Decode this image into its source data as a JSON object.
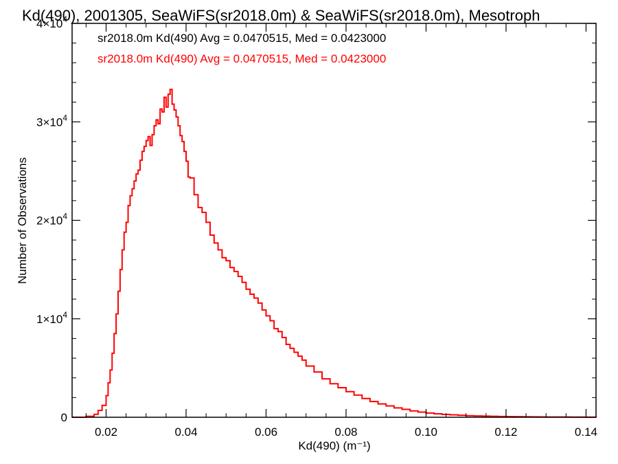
{
  "chart_data": {
    "type": "line",
    "title": "Kd(490), 2001305, SeaWiFS(sr2018.0m) & SeaWiFS(sr2018.0m), Mesotroph",
    "xlabel": "Kd(490) (m⁻¹)",
    "ylabel": "Number of Observations",
    "xlim": [
      0.0115,
      0.1425
    ],
    "ylim": [
      0,
      40000
    ],
    "xticks": [
      0.02,
      0.04,
      0.06,
      0.08,
      0.1,
      0.12,
      0.14
    ],
    "xtick_labels": [
      "0.02",
      "0.04",
      "0.06",
      "0.08",
      "0.10",
      "0.12",
      "0.14"
    ],
    "yticks": [
      {
        "value": 0,
        "mantissa": "0",
        "exponent": ""
      },
      {
        "value": 10000,
        "mantissa": "1×10",
        "exponent": "4"
      },
      {
        "value": 20000,
        "mantissa": "2×10",
        "exponent": "4"
      },
      {
        "value": 30000,
        "mantissa": "3×10",
        "exponent": "4"
      },
      {
        "value": 40000,
        "mantissa": "4×10",
        "exponent": "4"
      }
    ],
    "legend_lines": [
      {
        "text": "sr2018.0m Kd(490) Avg = 0.0470515, Med = 0.0423000",
        "color": "#000000"
      },
      {
        "text": "sr2018.0m Kd(490) Avg = 0.0470515, Med = 0.0423000",
        "color": "#ff0000"
      }
    ],
    "series": [
      {
        "style": "step",
        "color": "#ff0000",
        "x": [
          0.0115,
          0.015,
          0.017,
          0.018,
          0.019,
          0.02,
          0.0205,
          0.021,
          0.0215,
          0.022,
          0.0225,
          0.023,
          0.0235,
          0.024,
          0.0245,
          0.025,
          0.0255,
          0.026,
          0.0265,
          0.027,
          0.0275,
          0.028,
          0.0285,
          0.029,
          0.0295,
          0.03,
          0.0305,
          0.031,
          0.0315,
          0.032,
          0.0325,
          0.033,
          0.0335,
          0.034,
          0.0345,
          0.035,
          0.0355,
          0.036,
          0.0365,
          0.037,
          0.0375,
          0.038,
          0.0385,
          0.039,
          0.0395,
          0.04,
          0.0405,
          0.041,
          0.042,
          0.043,
          0.044,
          0.045,
          0.046,
          0.047,
          0.048,
          0.049,
          0.05,
          0.051,
          0.052,
          0.053,
          0.054,
          0.055,
          0.056,
          0.057,
          0.058,
          0.059,
          0.06,
          0.061,
          0.062,
          0.063,
          0.064,
          0.065,
          0.066,
          0.067,
          0.068,
          0.069,
          0.07,
          0.072,
          0.074,
          0.076,
          0.078,
          0.08,
          0.082,
          0.084,
          0.086,
          0.088,
          0.09,
          0.092,
          0.094,
          0.096,
          0.098,
          0.1,
          0.102,
          0.104,
          0.106,
          0.108,
          0.11,
          0.112,
          0.114,
          0.116,
          0.118,
          0.12,
          0.122,
          0.124,
          0.126,
          0.128,
          0.13,
          0.132,
          0.134,
          0.136,
          0.138,
          0.14,
          0.1425
        ],
        "values": [
          0,
          100,
          300,
          700,
          1200,
          2200,
          3500,
          4800,
          6500,
          8500,
          10500,
          12800,
          15000,
          17000,
          18800,
          19800,
          21500,
          22500,
          23200,
          24000,
          24700,
          25100,
          26100,
          27000,
          27500,
          28100,
          28500,
          27600,
          28700,
          29600,
          30200,
          29800,
          31300,
          31000,
          32500,
          31500,
          32800,
          33300,
          31800,
          31200,
          30500,
          29600,
          28600,
          28000,
          27000,
          26000,
          24400,
          24300,
          22600,
          21300,
          20800,
          19800,
          18500,
          17700,
          17000,
          16200,
          15900,
          15200,
          14800,
          14300,
          13700,
          13000,
          12500,
          12100,
          11600,
          10900,
          10300,
          9800,
          9000,
          8700,
          8100,
          7400,
          7000,
          6600,
          6200,
          5800,
          5200,
          4600,
          3900,
          3400,
          3000,
          2600,
          2250,
          1900,
          1600,
          1350,
          1150,
          950,
          800,
          650,
          520,
          430,
          350,
          290,
          240,
          200,
          160,
          130,
          110,
          95,
          80,
          70,
          60,
          50,
          40,
          35,
          30,
          26,
          22,
          18,
          15,
          12,
          10
        ]
      }
    ]
  }
}
